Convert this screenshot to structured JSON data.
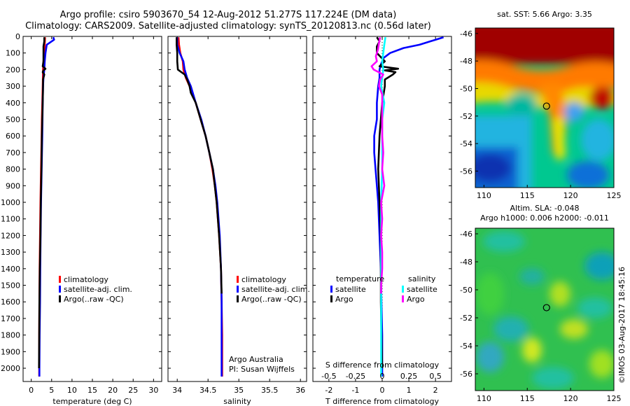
{
  "title": {
    "line1": "Argo profile: csiro 5903670_54 12-Aug-2012 51.277S 117.224E (DM data)",
    "line2": "Climatology: CARS2009. Satellite-adjusted climatology: synTS_20120813.nc (0.56d later)"
  },
  "watermark": "©IMOS 03-Aug-2017 18:45:16",
  "credits": {
    "line1": "Argo Australia",
    "line2": "PI: Susan Wijffels"
  },
  "colors": {
    "climatology": "#ff0000",
    "satellite": "#0000ff",
    "argo": "#000000",
    "sat_salinity": "#00ffff",
    "argo_salinity": "#ff00ff"
  },
  "chart_data": [
    {
      "type": "line",
      "id": "temperature",
      "xlabel": "temperature (deg C)",
      "ylabel": "",
      "xlim": [
        -2,
        32
      ],
      "ylim": [
        2080,
        0
      ],
      "xticks": [
        0,
        5,
        10,
        15,
        20,
        25,
        30
      ],
      "yticks": [
        0,
        100,
        200,
        300,
        400,
        500,
        600,
        700,
        800,
        900,
        1000,
        1100,
        1200,
        1300,
        1400,
        1500,
        1600,
        1700,
        1800,
        1900,
        2000
      ],
      "legend": [
        "climatology",
        "satellite-adj. clim.",
        "Argo(..raw -QC)"
      ],
      "series": [
        {
          "name": "climatology",
          "y": [
            5,
            50,
            100,
            150,
            200,
            300,
            400,
            500,
            600,
            800,
            1000,
            1200,
            1400,
            1600,
            1800,
            2000,
            2050
          ],
          "x": [
            3.4,
            3.3,
            3.2,
            3.0,
            2.9,
            2.8,
            2.7,
            2.6,
            2.55,
            2.4,
            2.25,
            2.15,
            2.05,
            2.0,
            1.95,
            1.95,
            1.95
          ]
        },
        {
          "name": "satellite-adj. clim.",
          "y": [
            5,
            20,
            50,
            100,
            150,
            200,
            250,
            300,
            400,
            500,
            600,
            800,
            1000,
            1200,
            1400,
            1600,
            1800,
            2000,
            2050
          ],
          "x": [
            5.4,
            5.6,
            3.8,
            3.5,
            3.3,
            3.2,
            3.0,
            2.9,
            2.8,
            2.75,
            2.7,
            2.55,
            2.4,
            2.3,
            2.2,
            2.15,
            2.05,
            2.0,
            2.0
          ]
        },
        {
          "name": "Argo(..raw -QC)",
          "y": [
            5,
            30,
            60,
            100,
            150,
            180,
            195,
            205,
            215,
            230,
            260,
            300,
            400,
            500,
            600,
            800,
            1000,
            1200,
            1400,
            1600,
            1800,
            2000
          ],
          "x": [
            3.2,
            3.2,
            3.0,
            3.0,
            3.0,
            2.8,
            3.5,
            3.0,
            2.8,
            3.2,
            2.9,
            2.9,
            2.8,
            2.7,
            2.6,
            2.5,
            2.35,
            2.25,
            2.1,
            2.0,
            1.95,
            1.9
          ]
        }
      ]
    },
    {
      "type": "line",
      "id": "salinity",
      "xlabel": "salinity",
      "ylabel": "",
      "xlim": [
        33.85,
        36.1
      ],
      "ylim": [
        2080,
        0
      ],
      "xticks": [
        34,
        34.5,
        35,
        35.5,
        36
      ],
      "yticks": [
        0,
        100,
        200,
        300,
        400,
        500,
        600,
        700,
        800,
        900,
        1000,
        1100,
        1200,
        1300,
        1400,
        1500,
        1600,
        1700,
        1800,
        1900,
        2000
      ],
      "legend": [
        "climatology",
        "satellite-adj. clim.",
        "Argo(..raw -QC)"
      ],
      "series": [
        {
          "name": "climatology",
          "y": [
            5,
            50,
            100,
            150,
            200,
            250,
            300,
            400,
            500,
            600,
            700,
            800,
            900,
            1000,
            1200,
            1400,
            1600,
            1800,
            2000,
            2050
          ],
          "x": [
            34.02,
            34.03,
            34.05,
            34.09,
            34.1,
            34.14,
            34.2,
            34.3,
            34.38,
            34.46,
            34.52,
            34.57,
            34.61,
            34.64,
            34.68,
            34.71,
            34.72,
            34.73,
            34.73,
            34.73
          ]
        },
        {
          "name": "satellite-adj. clim.",
          "y": [
            5,
            50,
            100,
            150,
            200,
            250,
            300,
            400,
            500,
            600,
            700,
            800,
            900,
            1000,
            1200,
            1400,
            1600,
            1800,
            2000,
            2050
          ],
          "x": [
            34.0,
            34.0,
            34.04,
            34.1,
            34.12,
            34.16,
            34.22,
            34.3,
            34.39,
            34.46,
            34.52,
            34.58,
            34.62,
            34.65,
            34.69,
            34.71,
            34.72,
            34.72,
            34.72,
            34.72
          ]
        },
        {
          "name": "Argo(..raw -QC)",
          "y": [
            5,
            50,
            100,
            150,
            200,
            230,
            260,
            300,
            340,
            400,
            500,
            600,
            700,
            800,
            1000,
            1200,
            1400,
            1550
          ],
          "x": [
            33.99,
            33.99,
            34.0,
            34.0,
            34.01,
            34.12,
            34.16,
            34.2,
            34.22,
            34.3,
            34.38,
            34.46,
            34.52,
            34.58,
            34.64,
            34.68,
            34.71,
            34.72
          ]
        }
      ]
    },
    {
      "type": "line",
      "id": "difference",
      "xlabel": "T difference from climatology",
      "top_label": "S difference from climatology",
      "xlim": [
        -2.6,
        2.6
      ],
      "ylim": [
        2080,
        0
      ],
      "xticks": [
        -2,
        -1,
        0,
        1,
        2
      ],
      "top_xticks": [
        "-0.5",
        "-0.25",
        "0",
        "0.25",
        "0.5"
      ],
      "yticks": [
        0,
        100,
        200,
        300,
        400,
        500,
        600,
        700,
        800,
        900,
        1000,
        1100,
        1200,
        1300,
        1400,
        1500,
        1600,
        1700,
        1800,
        1900,
        2000
      ],
      "legend": {
        "temperature_title": "temperature",
        "temperature_items": [
          "satellite",
          "Argo"
        ],
        "salinity_title": "salinity",
        "salinity_items": [
          "satellite",
          "Argo"
        ]
      },
      "series": [
        {
          "name": "temperature satellite",
          "y": [
            5,
            15,
            30,
            50,
            70,
            100,
            130,
            170,
            200,
            250,
            300,
            400,
            500,
            600,
            700,
            800,
            900,
            1000,
            1200,
            1400,
            1600,
            1800,
            2000,
            2050
          ],
          "x": [
            2.3,
            2.1,
            1.8,
            1.4,
            0.8,
            0.3,
            0.05,
            -0.05,
            -0.1,
            -0.1,
            -0.15,
            -0.2,
            -0.2,
            -0.3,
            -0.3,
            -0.25,
            -0.2,
            -0.15,
            -0.1,
            -0.05,
            -0.03,
            0.0,
            0.0,
            0.0
          ]
        },
        {
          "name": "temperature Argo",
          "y": [
            5,
            30,
            60,
            100,
            150,
            180,
            195,
            205,
            215,
            230,
            260,
            300,
            400,
            500,
            600,
            800,
            1000,
            1200,
            1400,
            1600,
            1800,
            2000
          ],
          "x": [
            -0.2,
            -0.1,
            -0.2,
            -0.2,
            0.1,
            -0.1,
            0.6,
            0.1,
            0.5,
            0.4,
            0.1,
            0.1,
            0.0,
            -0.05,
            -0.1,
            -0.15,
            -0.1,
            -0.05,
            -0.05,
            -0.05,
            -0.03,
            0.0
          ]
        },
        {
          "name": "salinity satellite",
          "y": [
            5,
            50,
            100,
            150,
            200,
            250,
            300,
            400,
            500,
            600,
            800,
            1000,
            1200,
            1400,
            1600,
            1800,
            2000,
            2050
          ],
          "x": [
            0.03,
            0.02,
            0.01,
            0.0,
            0.01,
            0.0,
            -0.01,
            0.02,
            0.0,
            0.0,
            0.0,
            -0.01,
            -0.01,
            -0.01,
            -0.01,
            -0.01,
            -0.01,
            -0.01
          ]
        },
        {
          "name": "salinity Argo",
          "y": [
            5,
            40,
            80,
            120,
            150,
            180,
            200,
            230,
            260,
            300,
            350,
            400,
            500,
            600,
            700,
            800,
            900,
            1000,
            1100,
            1200,
            1300,
            1400,
            1500,
            1550
          ],
          "x": [
            -0.02,
            -0.03,
            -0.04,
            -0.06,
            -0.05,
            -0.1,
            -0.08,
            0.01,
            -0.02,
            -0.03,
            0.0,
            0.0,
            0.0,
            0.0,
            0.01,
            0.0,
            0.02,
            -0.01,
            0.0,
            -0.01,
            0.0,
            0.0,
            -0.01,
            -0.01
          ]
        }
      ]
    },
    {
      "type": "heatmap",
      "id": "sst-map",
      "title": "sat. SST: 5.66 Argo: 3.35",
      "xlim": [
        109,
        125
      ],
      "ylim": [
        -57.2,
        -45.6
      ],
      "xticks": [
        110,
        115,
        120,
        125
      ],
      "yticks": [
        -46,
        -48,
        -50,
        -52,
        -54,
        -56
      ],
      "marker": {
        "lon": 117.224,
        "lat": -51.277
      }
    },
    {
      "type": "heatmap",
      "id": "sla-map",
      "title_line1": "Altim. SLA: -0.048",
      "title_line2": "Argo h1000: 0.006 h2000: -0.011",
      "xlim": [
        109,
        125
      ],
      "ylim": [
        -57.2,
        -45.6
      ],
      "xticks": [
        110,
        115,
        120,
        125
      ],
      "yticks": [
        -46,
        -48,
        -50,
        -52,
        -54,
        -56
      ],
      "marker": {
        "lon": 117.224,
        "lat": -51.277
      }
    }
  ]
}
